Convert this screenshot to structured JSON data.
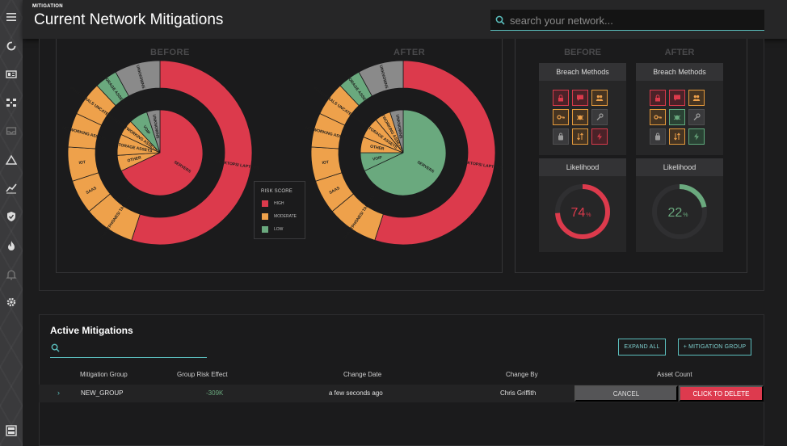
{
  "header": {
    "breadcrumb": "MITIGATION",
    "title": "Current Network Mitigations",
    "search_placeholder": "search your network..."
  },
  "sidebar": {
    "items": [
      "menu-icon",
      "refresh-icon",
      "id-card-icon",
      "network-icon",
      "inbox-icon",
      "warning-icon",
      "trend-icon",
      "shield-icon",
      "fire-icon",
      "bell-icon",
      "gear-icon",
      "layout-icon"
    ]
  },
  "charts": {
    "before_label": "BEFORE",
    "after_label": "AFTER",
    "legend": {
      "title": "RISK SCORE",
      "items": [
        {
          "label": "HIGH",
          "color": "#dc3a4c"
        },
        {
          "label": "MODERATE",
          "color": "#eea14b"
        },
        {
          "label": "LOW",
          "color": "#6aa97e"
        }
      ]
    },
    "before": {
      "outer": [
        {
          "label": "DESKTOPS/ LAPTOPS",
          "value": 55,
          "risk": "HIGH"
        },
        {
          "label": "SMARTPHONES/ TABLETS",
          "value": 9,
          "risk": "MODERATE"
        },
        {
          "label": "SAAS",
          "value": 6,
          "risk": "MODERATE"
        },
        {
          "label": "IOT",
          "value": 6,
          "risk": "MODERATE"
        },
        {
          "label": "NETWORKING ASSETS",
          "value": 6,
          "risk": "MODERATE"
        },
        {
          "label": "PERIPHERALS UNCATEGORIZED",
          "value": 6,
          "risk": "MODERATE"
        },
        {
          "label": "STORAGE ASSETS",
          "value": 4,
          "risk": "LOW"
        },
        {
          "label": "UNKNOWNS",
          "value": 8,
          "risk": "UNKNOWN"
        }
      ],
      "inner": [
        {
          "label": "SERVERS",
          "value": 68,
          "risk": "HIGH"
        },
        {
          "label": "OTHER",
          "value": 6,
          "risk": "MODERATE"
        },
        {
          "label": "STORAGE ASSETS",
          "value": 8,
          "risk": "MODERATE"
        },
        {
          "label": "NETWORKING ASSETS",
          "value": 6,
          "risk": "MODERATE"
        },
        {
          "label": "VOIP",
          "value": 7,
          "risk": "LOW"
        },
        {
          "label": "UNKNOWNS",
          "value": 5,
          "risk": "UNKNOWN"
        }
      ]
    },
    "after": {
      "outer": [
        {
          "label": "DESKTOPS/ LAPTOPS",
          "value": 55,
          "risk": "HIGH"
        },
        {
          "label": "SMARTPHONES/ TABLETS",
          "value": 9,
          "risk": "MODERATE"
        },
        {
          "label": "SAAS",
          "value": 6,
          "risk": "MODERATE"
        },
        {
          "label": "IOT",
          "value": 6,
          "risk": "MODERATE"
        },
        {
          "label": "NETWORKING ASSETS",
          "value": 6,
          "risk": "MODERATE"
        },
        {
          "label": "PERIPHERALS UNCATEGORIZED",
          "value": 6,
          "risk": "MODERATE"
        },
        {
          "label": "STORAGE ASSETS",
          "value": 4,
          "risk": "LOW"
        },
        {
          "label": "UNKNOWNS",
          "value": 8,
          "risk": "UNKNOWN"
        }
      ],
      "inner": [
        {
          "label": "SERVERS",
          "value": 68,
          "risk": "LOW"
        },
        {
          "label": "VOIP",
          "value": 7,
          "risk": "LOW"
        },
        {
          "label": "OTHER",
          "value": 6,
          "risk": "MODERATE"
        },
        {
          "label": "STORAGE ASSETS",
          "value": 8,
          "risk": "MODERATE"
        },
        {
          "label": "NETWORKING ASSETS",
          "value": 6,
          "risk": "MODERATE"
        },
        {
          "label": "UNKNOWNS",
          "value": 5,
          "risk": "UNKNOWN"
        }
      ]
    }
  },
  "breakdown": {
    "before_label": "BEFORE",
    "after_label": "AFTER",
    "breach_title": "Breach Methods",
    "likelihood_title": "Likelihood",
    "before": {
      "methods": [
        {
          "icon": "lock-icon",
          "risk": "r"
        },
        {
          "icon": "chat-icon",
          "risk": "r"
        },
        {
          "icon": "users-icon",
          "risk": "o"
        },
        {
          "icon": "key-icon",
          "risk": "o"
        },
        {
          "icon": "bug-icon",
          "risk": "o"
        },
        {
          "icon": "wrench-icon",
          "risk": "g"
        },
        {
          "icon": "bag-icon",
          "risk": "g"
        },
        {
          "icon": "swap-icon",
          "risk": "o"
        },
        {
          "icon": "bolt-icon",
          "risk": "r"
        }
      ],
      "likelihood": 74,
      "likelihood_color": "#dc3a4c"
    },
    "after": {
      "methods": [
        {
          "icon": "lock-icon",
          "risk": "r"
        },
        {
          "icon": "chat-icon",
          "risk": "r"
        },
        {
          "icon": "users-icon",
          "risk": "o"
        },
        {
          "icon": "key-icon",
          "risk": "o"
        },
        {
          "icon": "bug-icon",
          "risk": "gr"
        },
        {
          "icon": "wrench-icon",
          "risk": "g"
        },
        {
          "icon": "bag-icon",
          "risk": "g"
        },
        {
          "icon": "swap-icon",
          "risk": "o"
        },
        {
          "icon": "bolt-icon",
          "risk": "gr"
        }
      ],
      "likelihood": 22,
      "likelihood_color": "#6aa97e"
    },
    "percent_sign": "%"
  },
  "mitigations": {
    "title": "Active Mitigations",
    "expand_all": "EXPAND ALL",
    "add_group": "+ MITIGATION GROUP",
    "columns": [
      "Mitigation Group",
      "Group Risk Effect",
      "Change Date",
      "Change By",
      "Asset Count"
    ],
    "rows": [
      {
        "group": "NEW_GROUP",
        "effect": "-309K",
        "date": "a few seconds ago",
        "by": "Chris Griffith"
      }
    ],
    "cancel": "CANCEL",
    "delete": "CLICK TO DELETE",
    "effect_color": "#6aa97e"
  }
}
